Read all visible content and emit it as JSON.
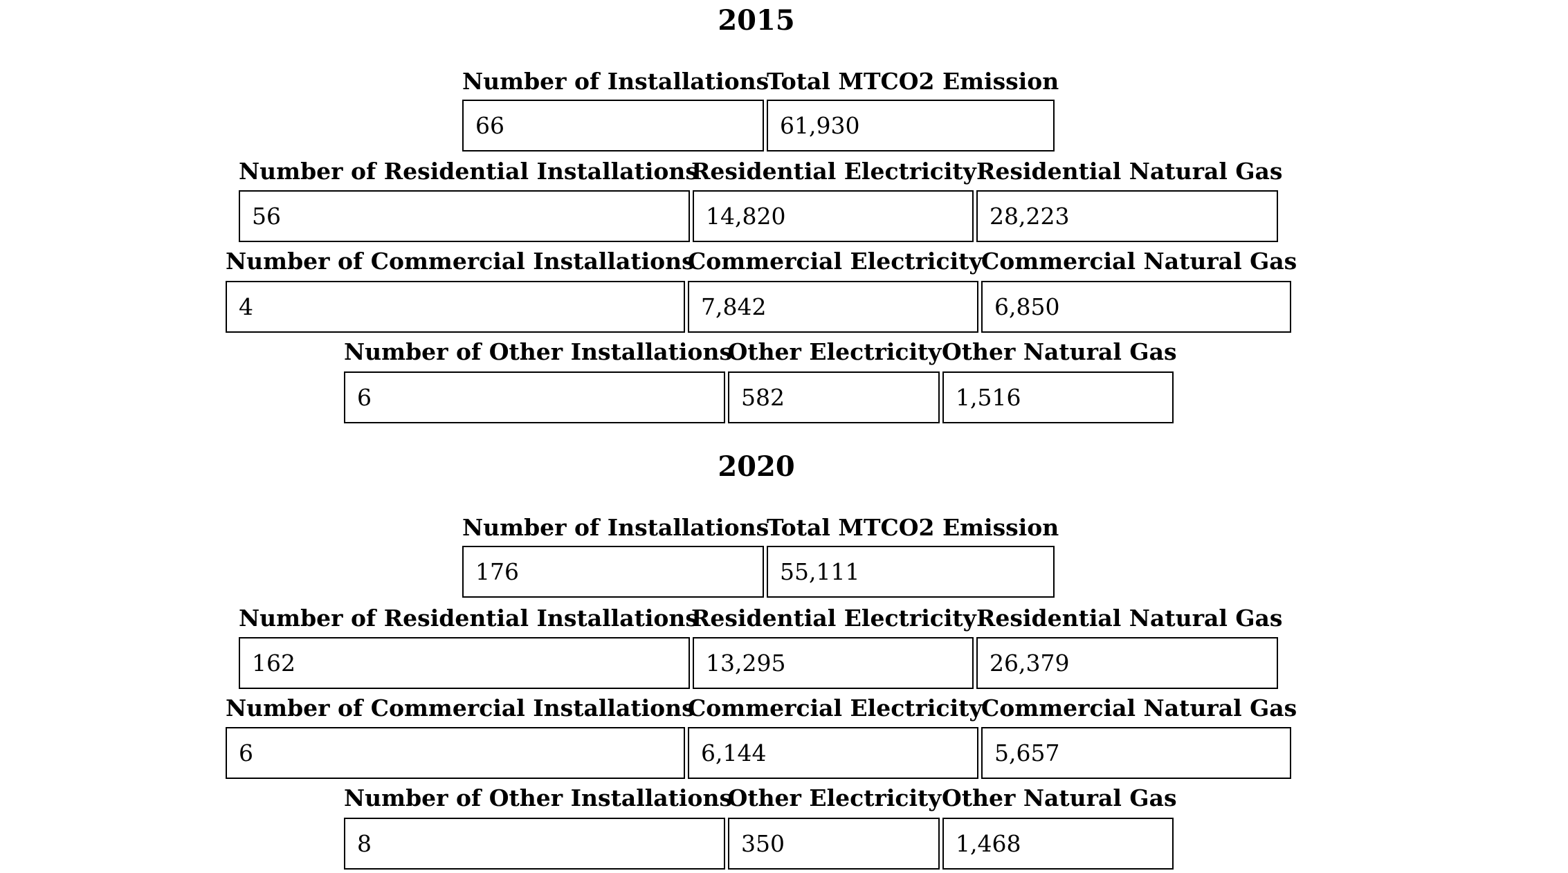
{
  "sections": [
    {
      "year": "2015",
      "rows": [
        {
          "labels": [
            "Number of Installations",
            "Total MTCO2 Emission"
          ],
          "values": [
            "66",
            "61,930"
          ]
        },
        {
          "labels": [
            "Number of Residential Installations",
            "Residential Electricity",
            "Residential Natural Gas"
          ],
          "values": [
            "56",
            "14,820",
            "28,223"
          ]
        },
        {
          "labels": [
            "Number of Commercial Installations",
            "Commercial Electricity",
            "Commercial Natural Gas"
          ],
          "values": [
            "4",
            "7,842",
            "6,850"
          ]
        },
        {
          "labels": [
            "Number of Other Installations",
            "Other Electricity",
            "Other Natural Gas"
          ],
          "values": [
            "6",
            "582",
            "1,516"
          ]
        }
      ]
    },
    {
      "year": "2020",
      "rows": [
        {
          "labels": [
            "Number of Installations",
            "Total MTCO2 Emission"
          ],
          "values": [
            "176",
            "55,111"
          ]
        },
        {
          "labels": [
            "Number of Residential Installations",
            "Residential Electricity",
            "Residential Natural Gas"
          ],
          "values": [
            "162",
            "13,295",
            "26,379"
          ]
        },
        {
          "labels": [
            "Number of Commercial Installations",
            "Commercial Electricity",
            "Commercial Natural Gas"
          ],
          "values": [
            "6",
            "6,144",
            "5,657"
          ]
        },
        {
          "labels": [
            "Number of Other Installations",
            "Other Electricity",
            "Other Natural Gas"
          ],
          "values": [
            "8",
            "350",
            "1,468"
          ]
        }
      ]
    }
  ]
}
